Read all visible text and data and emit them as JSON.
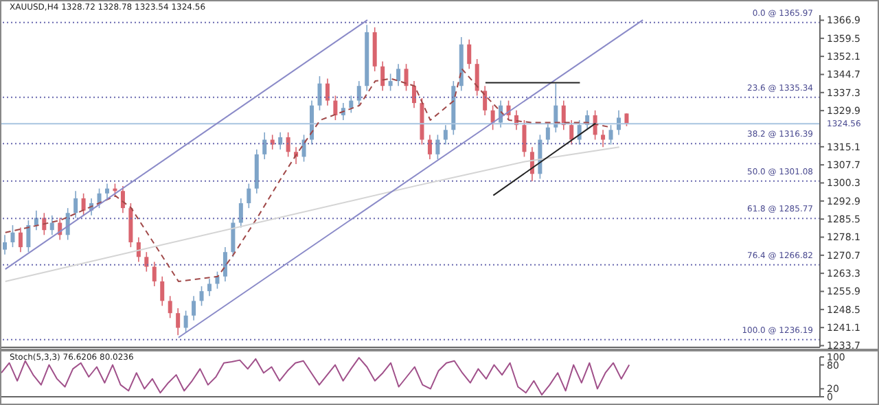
{
  "chart_data": [
    {
      "type": "candlestick",
      "title": "XAUUSD,H4 1328.72 1328.78 1323.54 1324.56",
      "categories": [
        null,
        null,
        null,
        null,
        null,
        null,
        null,
        null,
        null,
        null,
        null,
        null,
        null,
        null,
        null,
        null,
        null,
        null,
        null,
        null,
        null,
        null,
        null,
        null,
        null,
        null,
        null,
        null,
        null,
        null,
        null,
        null,
        null,
        null,
        null,
        null,
        null,
        null,
        null,
        null,
        null,
        null,
        null,
        null,
        null,
        null,
        null,
        null,
        null,
        null,
        null,
        null,
        null,
        null,
        null,
        null,
        null,
        null,
        null,
        null,
        null,
        null,
        null,
        null,
        null,
        null,
        null,
        null,
        null,
        null,
        null,
        null,
        null,
        null,
        null,
        null,
        null,
        null,
        null,
        null,
        null,
        null,
        null,
        null,
        null,
        null,
        null,
        null,
        null,
        null,
        null,
        null,
        null,
        null,
        null,
        null,
        null,
        null,
        null,
        null,
        null,
        null,
        null,
        null
      ],
      "ohlc": [
        [
          1273,
          1279,
          1271,
          1276
        ],
        [
          1276,
          1283,
          1274,
          1280
        ],
        [
          1280,
          1282,
          1272,
          1274
        ],
        [
          1274,
          1285,
          1272,
          1283
        ],
        [
          1283,
          1289,
          1281,
          1286
        ],
        [
          1286,
          1288,
          1279,
          1281
        ],
        [
          1281,
          1287,
          1279,
          1284
        ],
        [
          1284,
          1286,
          1277,
          1279
        ],
        [
          1279,
          1290,
          1277,
          1288
        ],
        [
          1288,
          1297,
          1286,
          1294
        ],
        [
          1294,
          1296,
          1287,
          1289
        ],
        [
          1289,
          1294,
          1287,
          1292
        ],
        [
          1292,
          1298,
          1290,
          1296
        ],
        [
          1296,
          1300,
          1294,
          1298
        ],
        [
          1298,
          1300,
          1295,
          1297
        ],
        [
          1297,
          1299,
          1288,
          1290
        ],
        [
          1290,
          1292,
          1274,
          1276
        ],
        [
          1276,
          1278,
          1268,
          1270
        ],
        [
          1270,
          1272,
          1264,
          1266
        ],
        [
          1266,
          1268,
          1258,
          1260
        ],
        [
          1260,
          1262,
          1250,
          1252
        ],
        [
          1252,
          1254,
          1245,
          1247
        ],
        [
          1247,
          1249,
          1238,
          1241
        ],
        [
          1241,
          1248,
          1239,
          1246
        ],
        [
          1246,
          1254,
          1244,
          1252
        ],
        [
          1252,
          1258,
          1250,
          1256
        ],
        [
          1256,
          1261,
          1254,
          1259
        ],
        [
          1259,
          1264,
          1257,
          1262
        ],
        [
          1262,
          1274,
          1260,
          1272
        ],
        [
          1272,
          1286,
          1270,
          1284
        ],
        [
          1284,
          1294,
          1282,
          1292
        ],
        [
          1292,
          1300,
          1290,
          1298
        ],
        [
          1298,
          1314,
          1296,
          1312
        ],
        [
          1312,
          1321,
          1310,
          1318
        ],
        [
          1318,
          1320,
          1314,
          1316
        ],
        [
          1316,
          1321,
          1314,
          1319
        ],
        [
          1319,
          1321,
          1311,
          1313
        ],
        [
          1313,
          1315,
          1308,
          1311
        ],
        [
          1311,
          1320,
          1309,
          1318
        ],
        [
          1318,
          1334,
          1316,
          1332
        ],
        [
          1332,
          1344,
          1330,
          1341
        ],
        [
          1341,
          1343,
          1332,
          1334
        ],
        [
          1334,
          1336,
          1326,
          1328
        ],
        [
          1328,
          1333,
          1326,
          1331
        ],
        [
          1331,
          1336,
          1329,
          1334
        ],
        [
          1334,
          1342,
          1332,
          1340
        ],
        [
          1340,
          1365,
          1338,
          1362
        ],
        [
          1362,
          1364,
          1346,
          1348
        ],
        [
          1348,
          1350,
          1338,
          1340
        ],
        [
          1340,
          1345,
          1338,
          1342
        ],
        [
          1342,
          1349,
          1340,
          1347
        ],
        [
          1347,
          1349,
          1338,
          1340
        ],
        [
          1340,
          1342,
          1331,
          1333
        ],
        [
          1333,
          1335,
          1316,
          1318
        ],
        [
          1318,
          1320,
          1310,
          1312
        ],
        [
          1312,
          1320,
          1310,
          1318
        ],
        [
          1318,
          1324,
          1316,
          1322
        ],
        [
          1322,
          1342,
          1320,
          1340
        ],
        [
          1340,
          1360,
          1338,
          1357
        ],
        [
          1357,
          1359,
          1347,
          1349
        ],
        [
          1349,
          1351,
          1336,
          1338
        ],
        [
          1338,
          1340,
          1328,
          1330
        ],
        [
          1330,
          1332,
          1322,
          1325
        ],
        [
          1325,
          1334,
          1323,
          1332
        ],
        [
          1332,
          1334,
          1326,
          1328
        ],
        [
          1328,
          1330,
          1322,
          1324
        ],
        [
          1324,
          1326,
          1311,
          1313
        ],
        [
          1313,
          1315,
          1301,
          1304
        ],
        [
          1304,
          1320,
          1302,
          1318
        ],
        [
          1318,
          1325,
          1316,
          1323
        ],
        [
          1323,
          1341,
          1321,
          1332
        ],
        [
          1332,
          1334,
          1322,
          1324
        ],
        [
          1324,
          1326,
          1316,
          1318
        ],
        [
          1318,
          1326,
          1316,
          1324
        ],
        [
          1324,
          1330,
          1322,
          1328
        ],
        [
          1328,
          1330,
          1318,
          1320
        ],
        [
          1320,
          1322,
          1315,
          1318
        ],
        [
          1318,
          1324,
          1316,
          1322
        ],
        [
          1322,
          1330,
          1320,
          1327
        ],
        [
          1328.72,
          1328.78,
          1323.54,
          1324.56
        ],
        null,
        null,
        null,
        null,
        null,
        null,
        null,
        null,
        null,
        null,
        null,
        null,
        null,
        null,
        null,
        null,
        null,
        null,
        null,
        null,
        null,
        null,
        null,
        null
      ],
      "colors": [
        "#7ea4c8",
        "#7ea4c8",
        "#d9646e",
        "#7ea4c8",
        "#7ea4c8",
        "#d9646e",
        "#7ea4c8",
        "#d9646e",
        "#7ea4c8",
        "#7ea4c8",
        "#d9646e",
        "#7ea4c8",
        "#7ea4c8",
        "#7ea4c8",
        "#d9646e",
        "#d9646e",
        "#d9646e",
        "#d9646e",
        "#d9646e",
        "#d9646e",
        "#d9646e",
        "#d9646e",
        "#d9646e",
        "#7ea4c8",
        "#7ea4c8",
        "#7ea4c8",
        "#7ea4c8",
        "#7ea4c8",
        "#7ea4c8",
        "#7ea4c8",
        "#7ea4c8",
        "#7ea4c8",
        "#7ea4c8",
        "#7ea4c8",
        "#d9646e",
        "#7ea4c8",
        "#d9646e",
        "#d9646e",
        "#7ea4c8",
        "#7ea4c8",
        "#7ea4c8",
        "#d9646e",
        "#d9646e",
        "#7ea4c8",
        "#7ea4c8",
        "#7ea4c8",
        "#7ea4c8",
        "#d9646e",
        "#d9646e",
        "#7ea4c8",
        "#7ea4c8",
        "#d9646e",
        "#d9646e",
        "#d9646e",
        "#d9646e",
        "#7ea4c8",
        "#7ea4c8",
        "#7ea4c8",
        "#7ea4c8",
        "#d9646e",
        "#d9646e",
        "#d9646e",
        "#d9646e",
        "#7ea4c8",
        "#d9646e",
        "#d9646e",
        "#d9646e",
        "#d9646e",
        "#7ea4c8",
        "#7ea4c8",
        "#7ea4c8",
        "#d9646e",
        "#d9646e",
        "#7ea4c8",
        "#7ea4c8",
        "#d9646e",
        "#d9646e",
        "#7ea4c8",
        "#7ea4c8",
        "#d9646e",
        null,
        null,
        null,
        null,
        null,
        null,
        null,
        null,
        null,
        null,
        null,
        null,
        null,
        null,
        null,
        null,
        null,
        null,
        null,
        null,
        null,
        null,
        null,
        null
      ],
      "series": [
        {
          "type": "line",
          "color": "#a04848",
          "line_style": "dashed",
          "values": [
            1280,
            null,
            null,
            null,
            null,
            null,
            null,
            1285,
            null,
            null,
            null,
            null,
            null,
            null,
            1295,
            null,
            1290,
            null,
            1280,
            null,
            null,
            1265,
            1260,
            null,
            null,
            null,
            null,
            1262,
            null,
            1271,
            null,
            null,
            1286,
            null,
            null,
            1302,
            null,
            1312,
            null,
            null,
            1326,
            null,
            null,
            null,
            null,
            1332,
            null,
            1342,
            null,
            1343,
            null,
            null,
            1340,
            null,
            1326,
            null,
            null,
            1334,
            1347,
            null,
            null,
            1336,
            null,
            null,
            1326,
            null,
            null,
            1325,
            null,
            null,
            null,
            null,
            null,
            null,
            1325,
            null,
            null,
            1323,
            null,
            null,
            null,
            null,
            null,
            null,
            null,
            null,
            null,
            null,
            null,
            null,
            null,
            null,
            null,
            null,
            null,
            null,
            null,
            null,
            null,
            null,
            null,
            null,
            null,
            null
          ]
        },
        {
          "type": "line",
          "color": "#d4d4d4",
          "line_style": "solid",
          "values": [
            1260,
            null,
            null,
            null,
            null,
            null,
            null,
            null,
            null,
            null,
            null,
            null,
            null,
            null,
            null,
            null,
            null,
            null,
            null,
            null,
            null,
            null,
            null,
            null,
            null,
            null,
            null,
            null,
            null,
            null,
            null,
            null,
            null,
            null,
            null,
            null,
            null,
            null,
            null,
            null,
            null,
            null,
            null,
            null,
            null,
            null,
            null,
            null,
            null,
            null,
            null,
            null,
            1299,
            null,
            null,
            null,
            null,
            null,
            null,
            null,
            null,
            null,
            null,
            null,
            null,
            null,
            1309,
            null,
            null,
            null,
            null,
            null,
            null,
            null,
            null,
            null,
            null,
            null,
            1315,
            null,
            null,
            null,
            null,
            null,
            null,
            null,
            null,
            null,
            null,
            null,
            null,
            null,
            null,
            null,
            null,
            null,
            null,
            null,
            null,
            null,
            null,
            null,
            null,
            null
          ]
        },
        {
          "type": "line",
          "color": "#8a8ac8",
          "line_style": "solid",
          "values": [
            1265,
            null,
            null,
            null,
            null,
            null,
            null,
            null,
            null,
            null,
            null,
            null,
            null,
            null,
            null,
            null,
            null,
            null,
            null,
            null,
            null,
            null,
            null,
            null,
            null,
            null,
            null,
            null,
            null,
            null,
            null,
            null,
            null,
            null,
            null,
            null,
            null,
            null,
            null,
            null,
            null,
            null,
            null,
            null,
            null,
            null,
            1367,
            null,
            null,
            null,
            null,
            null,
            null,
            null,
            null,
            null,
            null,
            null,
            null,
            null,
            null,
            null,
            null,
            null,
            null,
            null,
            null,
            null,
            null,
            null,
            null,
            null,
            null,
            null,
            null,
            null,
            null,
            null,
            null,
            null,
            null,
            null,
            null,
            null,
            null,
            null,
            null,
            null,
            null,
            null,
            null,
            null,
            null,
            null,
            null,
            null,
            null,
            null,
            null,
            null,
            null,
            null,
            null,
            null
          ]
        },
        {
          "type": "line",
          "color": "#8a8ac8",
          "line_style": "solid",
          "values": [
            null,
            null,
            null,
            null,
            null,
            null,
            null,
            null,
            null,
            null,
            null,
            null,
            null,
            null,
            null,
            null,
            null,
            null,
            null,
            null,
            null,
            null,
            1237,
            null,
            null,
            null,
            null,
            null,
            null,
            null,
            null,
            null,
            null,
            null,
            null,
            null,
            null,
            null,
            null,
            null,
            null,
            null,
            null,
            null,
            null,
            null,
            null,
            null,
            null,
            null,
            null,
            null,
            null,
            null,
            null,
            null,
            null,
            null,
            null,
            null,
            null,
            null,
            null,
            null,
            null,
            null,
            null,
            null,
            null,
            null,
            null,
            null,
            null,
            null,
            null,
            null,
            null,
            null,
            null,
            null,
            null,
            1367,
            null,
            null,
            null,
            null,
            null,
            null,
            null,
            null,
            null,
            null,
            null,
            null,
            null,
            null,
            null,
            null,
            null,
            null,
            null,
            null,
            null,
            null
          ]
        },
        {
          "type": "line",
          "color": "#222222",
          "line_style": "solid",
          "values": [
            null,
            null,
            null,
            null,
            null,
            null,
            null,
            null,
            null,
            null,
            null,
            null,
            null,
            null,
            null,
            null,
            null,
            null,
            null,
            null,
            null,
            null,
            null,
            null,
            null,
            null,
            null,
            null,
            null,
            null,
            null,
            null,
            null,
            null,
            null,
            null,
            null,
            null,
            null,
            null,
            null,
            null,
            null,
            null,
            null,
            null,
            null,
            null,
            null,
            null,
            null,
            null,
            null,
            null,
            null,
            null,
            null,
            null,
            null,
            null,
            null,
            1341.3,
            null,
            null,
            null,
            null,
            null,
            null,
            null,
            null,
            null,
            null,
            null,
            1341.3,
            null,
            null,
            null,
            null,
            null,
            null,
            null,
            null,
            null,
            null,
            null,
            null,
            null,
            null,
            null,
            null,
            null,
            null,
            null,
            null,
            null,
            null,
            null,
            null,
            null,
            null,
            null,
            null,
            null,
            null
          ]
        },
        {
          "type": "line",
          "color": "#222222",
          "line_style": "solid",
          "values": [
            null,
            null,
            null,
            null,
            null,
            null,
            null,
            null,
            null,
            null,
            null,
            null,
            null,
            null,
            null,
            null,
            null,
            null,
            null,
            null,
            null,
            null,
            null,
            null,
            null,
            null,
            null,
            null,
            null,
            null,
            null,
            null,
            null,
            null,
            null,
            null,
            null,
            null,
            null,
            null,
            null,
            null,
            null,
            null,
            null,
            null,
            null,
            null,
            null,
            null,
            null,
            null,
            null,
            null,
            null,
            null,
            null,
            null,
            null,
            null,
            null,
            null,
            1295.2,
            null,
            null,
            null,
            null,
            null,
            null,
            null,
            null,
            null,
            null,
            null,
            null,
            1324.7,
            null,
            null,
            null,
            null,
            null,
            null,
            null,
            null,
            null,
            null,
            null,
            null,
            null,
            null,
            null,
            null,
            null,
            null,
            null,
            null,
            null,
            null,
            null,
            null,
            null,
            null,
            null,
            null
          ]
        }
      ],
      "ylim": [
        1233,
        1369
      ],
      "yticks": [
        1366.9,
        1359.5,
        1352.1,
        1344.7,
        1337.3,
        1329.9,
        1315.1,
        1307.7,
        1300.3,
        1292.9,
        1285.5,
        1278.1,
        1270.7,
        1263.3,
        1255.9,
        1248.5,
        1241.1,
        1233.7
      ],
      "tick_labels": "y",
      "marker": "none",
      "legend": false,
      "grid": false,
      "ref_lines": [
        {
          "axis": "y",
          "value": 1365.97,
          "label": "0.0 @ 1365.97",
          "color": "#6a6ab0",
          "line_style": "dotted"
        },
        {
          "axis": "y",
          "value": 1335.34,
          "label": "23.6 @ 1335.34",
          "color": "#6a6ab0",
          "line_style": "dotted"
        },
        {
          "axis": "y",
          "value": 1316.39,
          "label": "38.2 @ 1316.39",
          "color": "#6a6ab0",
          "line_style": "dotted"
        },
        {
          "axis": "y",
          "value": 1301.08,
          "label": "50.0 @ 1301.08",
          "color": "#6a6ab0",
          "line_style": "dotted"
        },
        {
          "axis": "y",
          "value": 1285.77,
          "label": "61.8 @ 1285.77",
          "color": "#6a6ab0",
          "line_style": "dotted"
        },
        {
          "axis": "y",
          "value": 1266.82,
          "label": "76.4 @ 1266.82",
          "color": "#6a6ab0",
          "line_style": "dotted"
        },
        {
          "axis": "y",
          "value": 1236.19,
          "label": "100.0 @ 1236.19",
          "color": "#6a6ab0",
          "line_style": "dotted"
        },
        {
          "axis": "y",
          "value": 1324.56,
          "label": "1324.56",
          "color": "#a8c4e0",
          "line_style": "solid"
        }
      ]
    },
    {
      "type": "line",
      "title": "Stoch(5,3,3) 76.6206 80.0236",
      "categories": [
        null,
        null,
        null,
        null,
        null,
        null,
        null,
        null,
        null,
        null,
        null,
        null,
        null,
        null,
        null,
        null,
        null,
        null,
        null,
        null,
        null,
        null,
        null,
        null,
        null,
        null,
        null,
        null,
        null,
        null,
        null,
        null,
        null,
        null,
        null,
        null,
        null,
        null,
        null,
        null,
        null,
        null,
        null,
        null,
        null,
        null,
        null,
        null,
        null,
        null,
        null,
        null,
        null,
        null,
        null,
        null,
        null,
        null,
        null,
        null,
        null,
        null,
        null,
        null,
        null,
        null,
        null,
        null,
        null,
        null,
        null,
        null,
        null,
        null,
        null,
        null,
        null,
        null,
        null,
        null,
        null,
        null,
        null,
        null,
        null,
        null,
        null,
        null,
        null,
        null,
        null,
        null,
        null,
        null,
        null,
        null,
        null,
        null,
        null,
        null,
        null,
        null,
        null,
        null
      ],
      "series": [
        {
          "color": "#a0508a",
          "values": [
            60,
            85,
            40,
            90,
            55,
            30,
            80,
            45,
            25,
            70,
            85,
            50,
            75,
            35,
            80,
            30,
            15,
            60,
            20,
            45,
            10,
            35,
            55,
            15,
            40,
            70,
            30,
            50,
            85,
            88,
            92,
            70,
            95,
            60,
            75,
            40,
            65,
            85,
            90,
            60,
            30,
            55,
            80,
            40,
            70,
            98,
            75,
            40,
            60,
            85,
            25,
            50,
            75,
            30,
            20,
            65,
            85,
            90,
            60,
            35,
            70,
            45,
            80,
            55,
            85,
            25,
            10,
            40,
            5,
            30,
            60,
            15,
            80,
            35,
            85,
            20,
            60,
            85,
            45,
            80,
            null,
            null,
            null,
            null,
            null,
            null,
            null,
            null,
            null,
            null,
            null,
            null,
            null,
            null,
            null,
            null,
            null,
            null,
            null,
            null,
            null,
            null,
            null,
            null
          ]
        }
      ],
      "ylim": [
        0,
        100
      ],
      "yticks": [
        100,
        80,
        20,
        0
      ],
      "tick_labels": "y",
      "marker": "none",
      "legend": false,
      "grid": false
    }
  ]
}
